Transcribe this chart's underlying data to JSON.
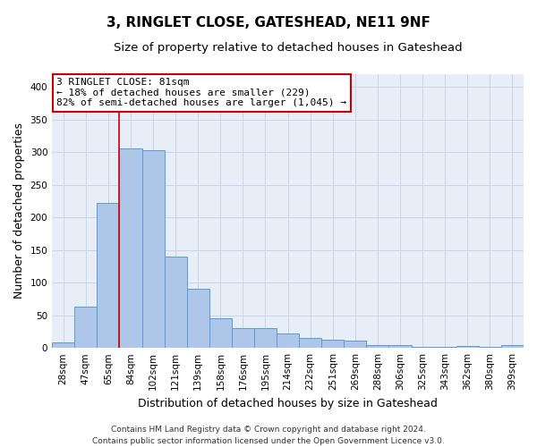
{
  "title": "3, RINGLET CLOSE, GATESHEAD, NE11 9NF",
  "subtitle": "Size of property relative to detached houses in Gateshead",
  "xlabel": "Distribution of detached houses by size in Gateshead",
  "ylabel": "Number of detached properties",
  "categories": [
    "28sqm",
    "47sqm",
    "65sqm",
    "84sqm",
    "102sqm",
    "121sqm",
    "139sqm",
    "158sqm",
    "176sqm",
    "195sqm",
    "214sqm",
    "232sqm",
    "251sqm",
    "269sqm",
    "288sqm",
    "306sqm",
    "325sqm",
    "343sqm",
    "362sqm",
    "380sqm",
    "399sqm"
  ],
  "values": [
    8,
    63,
    222,
    305,
    303,
    140,
    90,
    46,
    31,
    31,
    22,
    15,
    13,
    11,
    4,
    4,
    2,
    2,
    3,
    2,
    4
  ],
  "bar_color": "#aec6e8",
  "bar_edge_color": "#5b9bd5",
  "vline_color": "#cc0000",
  "vline_x": 2.5,
  "annotation_line1": "3 RINGLET CLOSE: 81sqm",
  "annotation_line2": "← 18% of detached houses are smaller (229)",
  "annotation_line3": "82% of semi-detached houses are larger (1,045) →",
  "annotation_box_color": "#ffffff",
  "annotation_box_edge": "#cc0000",
  "ylim": [
    0,
    420
  ],
  "yticks": [
    0,
    50,
    100,
    150,
    200,
    250,
    300,
    350,
    400
  ],
  "grid_color": "#c8d4e8",
  "background_color": "#e8eef8",
  "footer_line1": "Contains HM Land Registry data © Crown copyright and database right 2024.",
  "footer_line2": "Contains public sector information licensed under the Open Government Licence v3.0.",
  "title_fontsize": 11,
  "subtitle_fontsize": 9.5,
  "xlabel_fontsize": 9,
  "ylabel_fontsize": 9,
  "tick_fontsize": 7.5,
  "annotation_fontsize": 8,
  "footer_fontsize": 6.5
}
